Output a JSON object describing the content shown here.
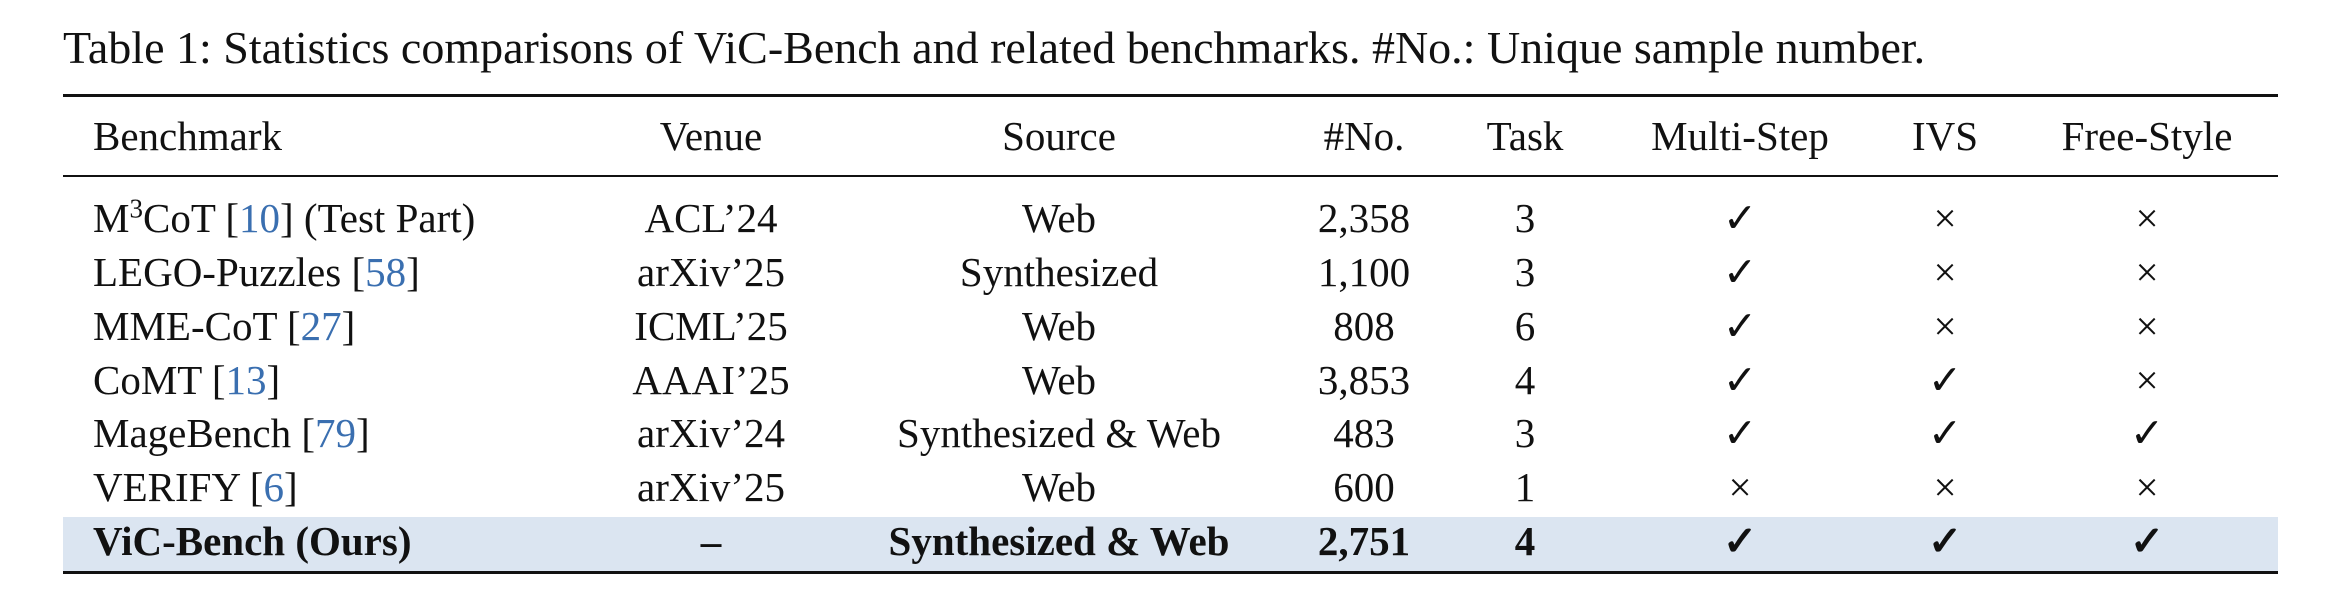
{
  "caption": "Table 1: Statistics comparisons of ViC-Bench and related benchmarks. #No.: Unique sample number.",
  "table": {
    "columns": [
      "Benchmark",
      "Venue",
      "Source",
      "#No.",
      "Task",
      "Multi-Step",
      "IVS",
      "Free-Style"
    ],
    "highlighted_row": 6,
    "rows": [
      [
        [
          {
            "text": "M"
          },
          {
            "text": "3",
            "style": "sup"
          },
          {
            "text": "CoT ["
          },
          {
            "text": "10",
            "style": "cite"
          },
          {
            "text": "] (Test Part)"
          }
        ],
        "ACL’24",
        "Web",
        "2,358",
        3,
        "✓",
        "×",
        "×"
      ],
      [
        [
          {
            "text": "LEGO-Puzzles ["
          },
          {
            "text": "58",
            "style": "cite"
          },
          {
            "text": "]"
          }
        ],
        "arXiv’25",
        "Synthesized",
        "1,100",
        3,
        "✓",
        "×",
        "×"
      ],
      [
        [
          {
            "text": "MME-CoT ["
          },
          {
            "text": "27",
            "style": "cite"
          },
          {
            "text": "]"
          }
        ],
        "ICML’25",
        "Web",
        "808",
        6,
        "✓",
        "×",
        "×"
      ],
      [
        [
          {
            "text": "CoMT ["
          },
          {
            "text": "13",
            "style": "cite"
          },
          {
            "text": "]"
          }
        ],
        "AAAI’25",
        "Web",
        "3,853",
        4,
        "✓",
        "✓",
        "×"
      ],
      [
        [
          {
            "text": "MageBench ["
          },
          {
            "text": "79",
            "style": "cite"
          },
          {
            "text": "]"
          }
        ],
        "arXiv’24",
        "Synthesized & Web",
        "483",
        3,
        "✓",
        "✓",
        "✓"
      ],
      [
        [
          {
            "text": "VERIFY ["
          },
          {
            "text": "6",
            "style": "cite"
          },
          {
            "text": "]"
          }
        ],
        "arXiv’25",
        "Web",
        "600",
        1,
        "×",
        "×",
        "×"
      ],
      [
        [
          {
            "text": "ViC-Bench (Ours)"
          }
        ],
        "–",
        "Synthesized & Web",
        "2,751",
        4,
        "✓",
        "✓",
        "✓"
      ]
    ]
  }
}
